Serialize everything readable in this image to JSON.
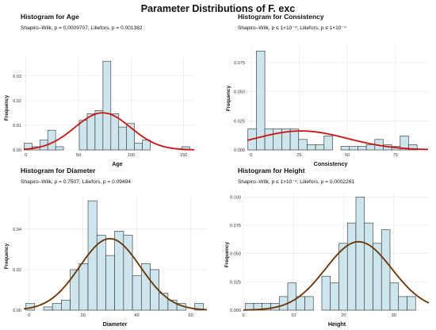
{
  "page_title": "Parameter Distributions of F. exc",
  "chart_data": [
    {
      "type": "histogram",
      "title": "Histogram for Age",
      "subtitle": "Shapiro–Wilk, p = 0.0009707; Liliefors, p = 0.001382",
      "xlabel": "Age",
      "ylabel": "Frequency",
      "xlim": [
        -2,
        160
      ],
      "ylim": [
        0,
        0.038
      ],
      "xticks": [
        0,
        50,
        100,
        150
      ],
      "yticks": [
        0.0,
        0.01,
        0.02,
        0.03
      ],
      "ytick_labels": [
        "0.00",
        "0.01",
        "0.02",
        "0.03"
      ],
      "bin_width": 7.5,
      "bins": [
        {
          "x": 2,
          "value": 0.0027
        },
        {
          "x": 9.5,
          "value": 0.0013
        },
        {
          "x": 17,
          "value": 0.004
        },
        {
          "x": 24.5,
          "value": 0.008
        },
        {
          "x": 32,
          "value": 0.0013
        },
        {
          "x": 54.5,
          "value": 0.012
        },
        {
          "x": 62,
          "value": 0.0147
        },
        {
          "x": 69.5,
          "value": 0.016
        },
        {
          "x": 77,
          "value": 0.036
        },
        {
          "x": 84.5,
          "value": 0.0147
        },
        {
          "x": 92,
          "value": 0.0093
        },
        {
          "x": 99.5,
          "value": 0.0107
        },
        {
          "x": 107,
          "value": 0.0027
        },
        {
          "x": 114.5,
          "value": 0.004
        },
        {
          "x": 152,
          "value": 0.0013
        }
      ],
      "curve": {
        "type": "normal",
        "mean": 73,
        "sd": 26.5,
        "scale": 1
      },
      "curve_color": "#cc1111"
    },
    {
      "type": "histogram",
      "title": "Histogram for Consistency",
      "subtitle": "Shapiro–Wilk, p ≤ 1×10⁻⁴; Liliefors, p ≤ 1×10⁻⁴",
      "xlabel": "Consistency",
      "ylabel": "Frequency",
      "xlim": [
        -2,
        92
      ],
      "ylim": [
        0,
        0.092
      ],
      "xticks": [
        0,
        25,
        50,
        75
      ],
      "yticks": [
        0.0,
        0.025,
        0.05,
        0.075
      ],
      "ytick_labels": [
        "0.000",
        "0.025",
        "0.050",
        "0.075"
      ],
      "bin_width": 4.4,
      "bins": [
        {
          "x": 0.5,
          "value": 0.018
        },
        {
          "x": 4.9,
          "value": 0.085
        },
        {
          "x": 9.3,
          "value": 0.018
        },
        {
          "x": 13.7,
          "value": 0.018
        },
        {
          "x": 18.1,
          "value": 0.018
        },
        {
          "x": 22.5,
          "value": 0.018
        },
        {
          "x": 26.9,
          "value": 0.009
        },
        {
          "x": 31.3,
          "value": 0.0045
        },
        {
          "x": 35.7,
          "value": 0.0045
        },
        {
          "x": 40.1,
          "value": 0.012
        },
        {
          "x": 48.9,
          "value": 0.003
        },
        {
          "x": 53.3,
          "value": 0.003
        },
        {
          "x": 57.7,
          "value": 0.003
        },
        {
          "x": 62.1,
          "value": 0.0045
        },
        {
          "x": 66.5,
          "value": 0.009
        },
        {
          "x": 70.9,
          "value": 0.0045
        },
        {
          "x": 75.3,
          "value": 0.003
        },
        {
          "x": 79.7,
          "value": 0.012
        },
        {
          "x": 84.1,
          "value": 0.0045
        }
      ],
      "curve": {
        "type": "normal",
        "mean": 26,
        "sd": 24,
        "scale": 0.98
      },
      "curve_color": "#cc1111"
    },
    {
      "type": "histogram",
      "title": "Histogram for Diameter",
      "subtitle": "Shapiro–Wilk, p = 0.7507; Liliefors, p = 0.09494",
      "xlabel": "Diameter",
      "ylabel": "Frequency",
      "xlim": [
        -2,
        66
      ],
      "ylim": [
        0,
        0.056
      ],
      "xticks": [
        0,
        20,
        40,
        60
      ],
      "yticks": [
        0.0,
        0.02,
        0.04
      ],
      "ytick_labels": [
        "0.00",
        "0.02",
        "0.04"
      ],
      "bin_width": 3.3,
      "bins": [
        {
          "x": 0.4,
          "value": 0.0033
        },
        {
          "x": 7,
          "value": 0.0016
        },
        {
          "x": 10.3,
          "value": 0.0033
        },
        {
          "x": 13.6,
          "value": 0.005
        },
        {
          "x": 16.9,
          "value": 0.02
        },
        {
          "x": 20.2,
          "value": 0.023
        },
        {
          "x": 23.5,
          "value": 0.054
        },
        {
          "x": 26.8,
          "value": 0.037
        },
        {
          "x": 30.1,
          "value": 0.027
        },
        {
          "x": 33.4,
          "value": 0.039
        },
        {
          "x": 36.7,
          "value": 0.037
        },
        {
          "x": 40,
          "value": 0.017
        },
        {
          "x": 43.3,
          "value": 0.023
        },
        {
          "x": 46.6,
          "value": 0.02
        },
        {
          "x": 49.9,
          "value": 0.0083
        },
        {
          "x": 53.2,
          "value": 0.005
        },
        {
          "x": 56.5,
          "value": 0.0033
        },
        {
          "x": 63.1,
          "value": 0.0033
        }
      ],
      "curve": {
        "type": "normal",
        "mean": 30,
        "sd": 11.3,
        "scale": 1
      },
      "curve_color": "#6b3200"
    },
    {
      "type": "histogram",
      "title": "Histogram for Height",
      "subtitle": "Shapiro–Wilk, p ≤ 1×10⁻⁴; Liliefors, p = 0.0002261",
      "xlabel": "Height",
      "ylabel": "Frequency",
      "xlim": [
        0,
        37
      ],
      "ylim": [
        0,
        0.103
      ],
      "xticks": [
        0,
        10,
        20,
        30
      ],
      "yticks": [
        0.0,
        0.025,
        0.05,
        0.075,
        0.1
      ],
      "ytick_labels": [
        "0.000",
        "0.025",
        "0.050",
        "0.075",
        "0.100"
      ],
      "bin_width": 1.7,
      "bins": [
        {
          "x": 1.2,
          "value": 0.006
        },
        {
          "x": 2.9,
          "value": 0.006
        },
        {
          "x": 4.6,
          "value": 0.006
        },
        {
          "x": 6.3,
          "value": 0.006
        },
        {
          "x": 8,
          "value": 0.012
        },
        {
          "x": 9.7,
          "value": 0.024
        },
        {
          "x": 11.4,
          "value": 0.012
        },
        {
          "x": 13.1,
          "value": 0.012
        },
        {
          "x": 16.5,
          "value": 0.03
        },
        {
          "x": 18.2,
          "value": 0.024
        },
        {
          "x": 19.9,
          "value": 0.059
        },
        {
          "x": 21.6,
          "value": 0.077
        },
        {
          "x": 23.3,
          "value": 0.1
        },
        {
          "x": 25,
          "value": 0.077
        },
        {
          "x": 26.7,
          "value": 0.059
        },
        {
          "x": 28.4,
          "value": 0.071
        },
        {
          "x": 30.1,
          "value": 0.024
        },
        {
          "x": 31.8,
          "value": 0.012
        },
        {
          "x": 33.5,
          "value": 0.012
        }
      ],
      "curve": {
        "type": "normal",
        "mean": 23,
        "sd": 6.6,
        "scale": 1
      },
      "curve_color": "#6b3200"
    }
  ]
}
